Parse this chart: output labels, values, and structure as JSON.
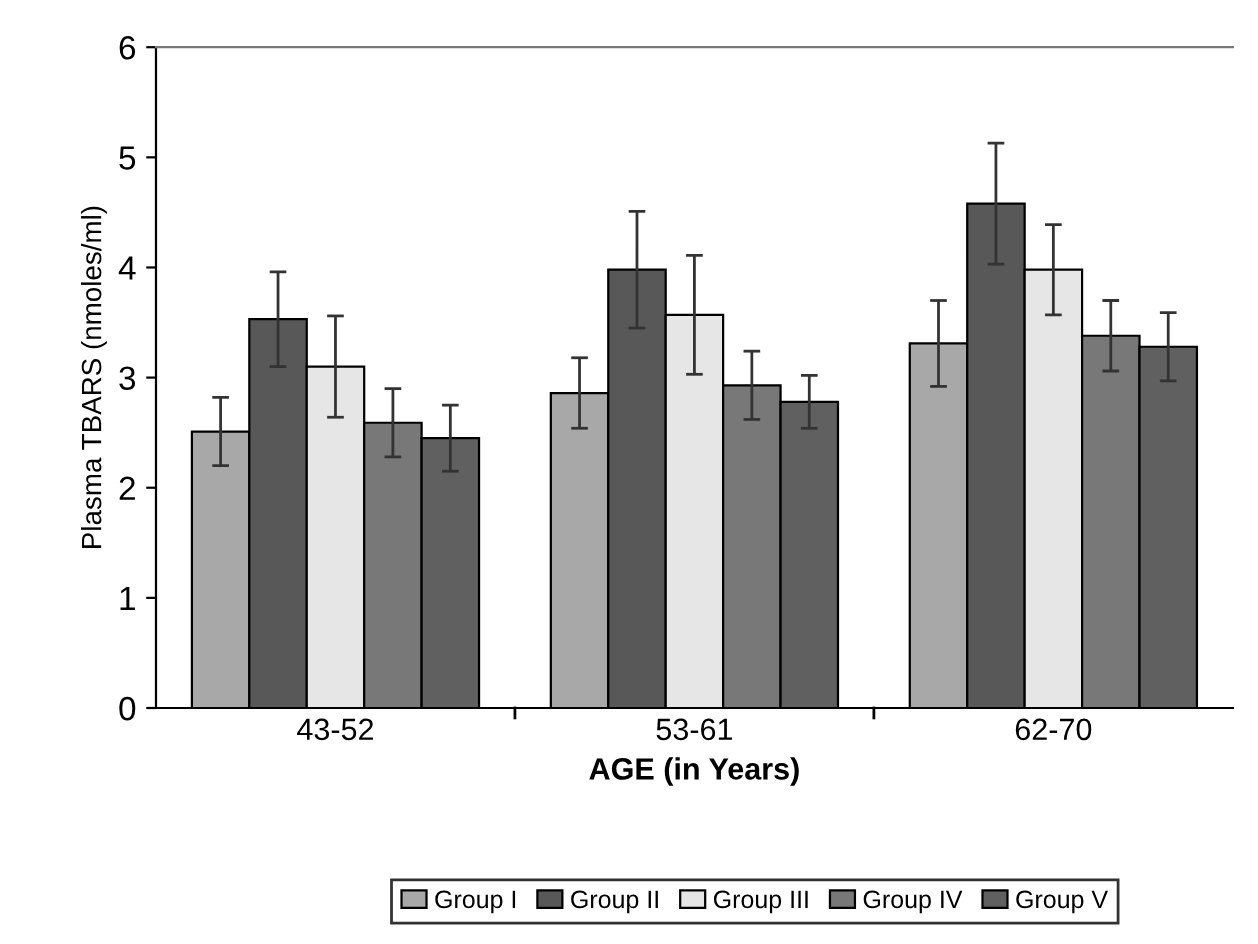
{
  "chart_data": {
    "type": "bar",
    "xlabel": "AGE (in Years)",
    "ylabel": "Plasma TBARS (nmoles/ml)",
    "categories": [
      "43-52",
      "53-61",
      "62-70"
    ],
    "series": [
      {
        "name": "Group I",
        "color": "#a8a8a8",
        "values": [
          2.51,
          2.86,
          3.31
        ],
        "errors": [
          0.31,
          0.32,
          0.39
        ]
      },
      {
        "name": "Group II",
        "color": "#585858",
        "values": [
          3.53,
          3.98,
          4.58
        ],
        "errors": [
          0.43,
          0.53,
          0.55
        ]
      },
      {
        "name": "Group III",
        "color": "#e6e6e6",
        "values": [
          3.1,
          3.57,
          3.98
        ],
        "errors": [
          0.46,
          0.54,
          0.41
        ]
      },
      {
        "name": "Group IV",
        "color": "#787878",
        "values": [
          2.59,
          2.93,
          3.38
        ],
        "errors": [
          0.31,
          0.31,
          0.32
        ]
      },
      {
        "name": "Group V",
        "color": "#606060",
        "values": [
          2.45,
          2.78,
          3.28
        ],
        "errors": [
          0.3,
          0.24,
          0.31
        ]
      }
    ],
    "ylim": [
      0,
      6
    ],
    "yticks": [
      0,
      1,
      2,
      3,
      4,
      5,
      6
    ],
    "grid": false,
    "legend": "bottom"
  }
}
